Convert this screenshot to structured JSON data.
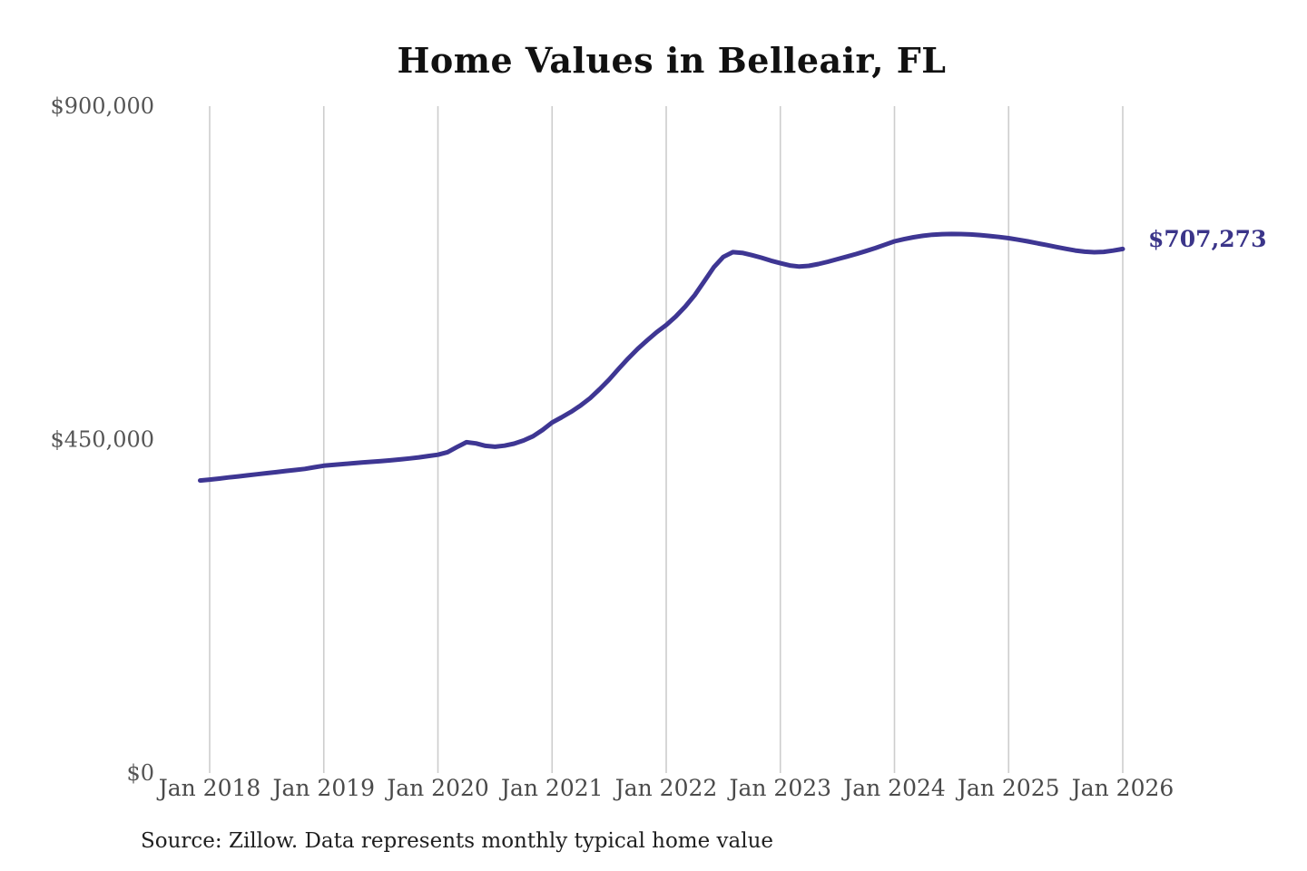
{
  "title": "Home Values in Belleair, FL",
  "source_note": "Source: Zillow. Data represents monthly typical home value",
  "colors": {
    "accent_line": "#3e3693",
    "accent_label": "#3b3589",
    "grid": "#cdcdcd",
    "axis_text": "#4a4a4a",
    "title_text": "#111111",
    "background": "#ffffff"
  },
  "chart_data": {
    "type": "line",
    "title": "Home Values in Belleair, FL",
    "xlabel": "",
    "ylabel": "",
    "ylim": [
      0,
      900000
    ],
    "grid": "vertical-only",
    "legend": "none",
    "x_tick_labels": [
      "Jan 2018",
      "Jan 2019",
      "Jan 2020",
      "Jan 2021",
      "Jan 2022",
      "Jan 2023",
      "Jan 2024",
      "Jan 2025",
      "Jan 2026"
    ],
    "y_ticks": [
      {
        "value": 0,
        "label": "$0"
      },
      {
        "value": 450000,
        "label": "$450,000"
      },
      {
        "value": 900000,
        "label": "$900,000"
      }
    ],
    "series": [
      {
        "name": "Monthly typical home value",
        "color": "#3e3693",
        "frequency": "monthly",
        "start_month": "Dec 2017",
        "end_month": "Jan 2026",
        "start_offset_months": -1,
        "end_label": "$707,273",
        "final_value": 707273,
        "values": [
          394800,
          396000,
          397400,
          398900,
          400300,
          401800,
          403200,
          404700,
          406100,
          407600,
          409000,
          410500,
          412600,
          414700,
          415800,
          416900,
          418000,
          419000,
          420000,
          421000,
          422000,
          423200,
          424500,
          426000,
          427800,
          429500,
          433000,
          440000,
          446500,
          444800,
          441500,
          440300,
          441800,
          444500,
          448800,
          454500,
          463000,
          473000,
          480000,
          487500,
          496000,
          506000,
          518000,
          531000,
          545500,
          559500,
          572500,
          584000,
          595000,
          604500,
          616000,
          629500,
          645000,
          663500,
          682500,
          696500,
          703000,
          702000,
          699000,
          695500,
          691500,
          688000,
          685000,
          683500,
          684500,
          687000,
          690000,
          693500,
          697000,
          700500,
          704500,
          708500,
          713000,
          717500,
          720500,
          723000,
          725000,
          726500,
          727200,
          727500,
          727300,
          726800,
          726000,
          724800,
          723400,
          721800,
          719800,
          717500,
          715000,
          712500,
          710000,
          707500,
          705200,
          703600,
          702900,
          703400,
          705100,
          707273
        ]
      }
    ]
  }
}
